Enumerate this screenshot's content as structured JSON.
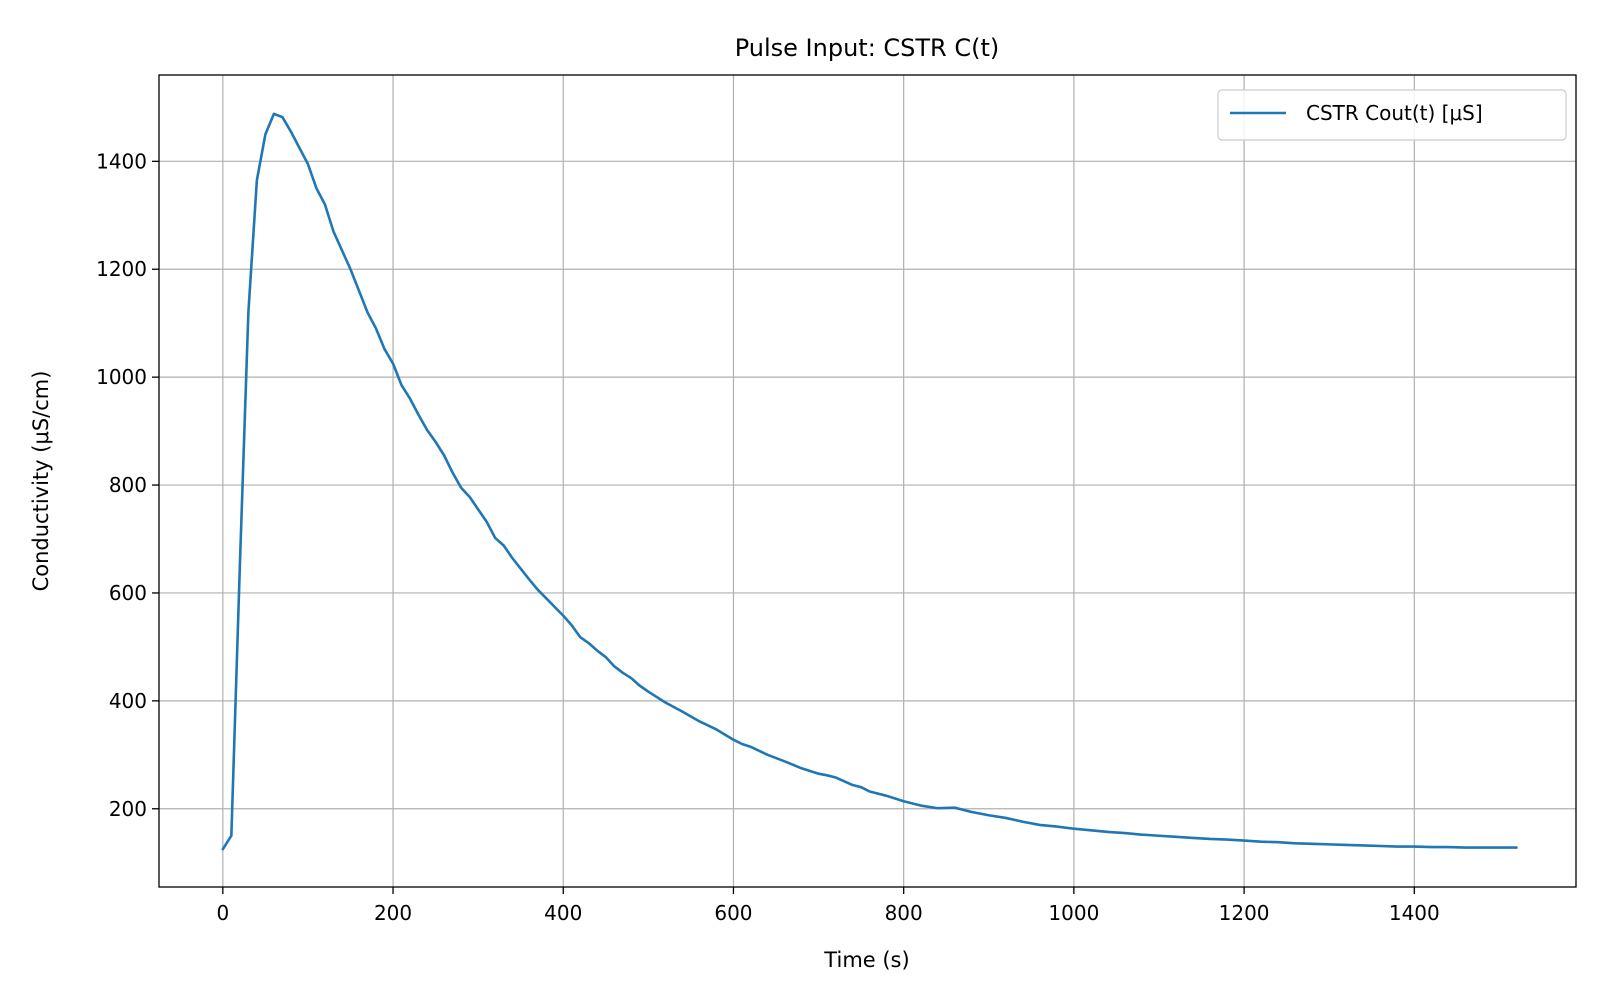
{
  "chart_data": {
    "type": "line",
    "title": "Pulse Input: CSTR C(t)",
    "xlabel": "Time (s)",
    "ylabel": "Conductivity (μS/cm)",
    "xlim": [
      -75,
      1590
    ],
    "ylim": [
      55,
      1560
    ],
    "xticks": [
      0,
      200,
      400,
      600,
      800,
      1000,
      1200,
      1400
    ],
    "yticks": [
      200,
      400,
      600,
      800,
      1000,
      1200,
      1400
    ],
    "grid": true,
    "legend_position": "top-right",
    "series": [
      {
        "name": "CSTR Cout(t) [μS]",
        "color": "#1f77b4",
        "x": [
          0,
          10,
          20,
          30,
          40,
          50,
          60,
          70,
          80,
          90,
          100,
          110,
          120,
          130,
          140,
          150,
          160,
          170,
          180,
          190,
          200,
          210,
          220,
          230,
          240,
          250,
          260,
          270,
          280,
          290,
          300,
          310,
          320,
          330,
          340,
          350,
          360,
          370,
          380,
          390,
          400,
          410,
          420,
          430,
          440,
          450,
          460,
          470,
          480,
          490,
          500,
          520,
          540,
          560,
          580,
          600,
          610,
          620,
          640,
          660,
          680,
          700,
          710,
          720,
          740,
          750,
          760,
          780,
          800,
          820,
          840,
          860,
          880,
          900,
          920,
          940,
          960,
          980,
          1000,
          1020,
          1040,
          1060,
          1080,
          1100,
          1120,
          1140,
          1160,
          1180,
          1200,
          1220,
          1240,
          1260,
          1280,
          1300,
          1320,
          1340,
          1360,
          1380,
          1400,
          1420,
          1440,
          1460,
          1480,
          1500,
          1520
        ],
        "y": [
          125,
          150,
          650,
          1120,
          1365,
          1450,
          1488,
          1482,
          1455,
          1425,
          1395,
          1350,
          1320,
          1270,
          1235,
          1200,
          1160,
          1120,
          1090,
          1052,
          1025,
          985,
          960,
          930,
          902,
          880,
          855,
          823,
          795,
          778,
          755,
          732,
          702,
          688,
          665,
          645,
          625,
          606,
          590,
          574,
          558,
          540,
          518,
          507,
          493,
          481,
          464,
          452,
          442,
          428,
          417,
          397,
          380,
          362,
          347,
          328,
          320,
          315,
          300,
          288,
          275,
          265,
          262,
          258,
          244,
          240,
          232,
          224,
          214,
          206,
          201,
          202,
          194,
          188,
          183,
          176,
          170,
          167,
          163,
          160,
          157,
          155,
          152,
          150,
          148,
          146,
          144,
          143,
          141,
          139,
          138,
          136,
          135,
          134,
          133,
          132,
          131,
          130,
          130,
          129,
          129,
          128,
          128,
          128,
          128
        ]
      }
    ]
  }
}
